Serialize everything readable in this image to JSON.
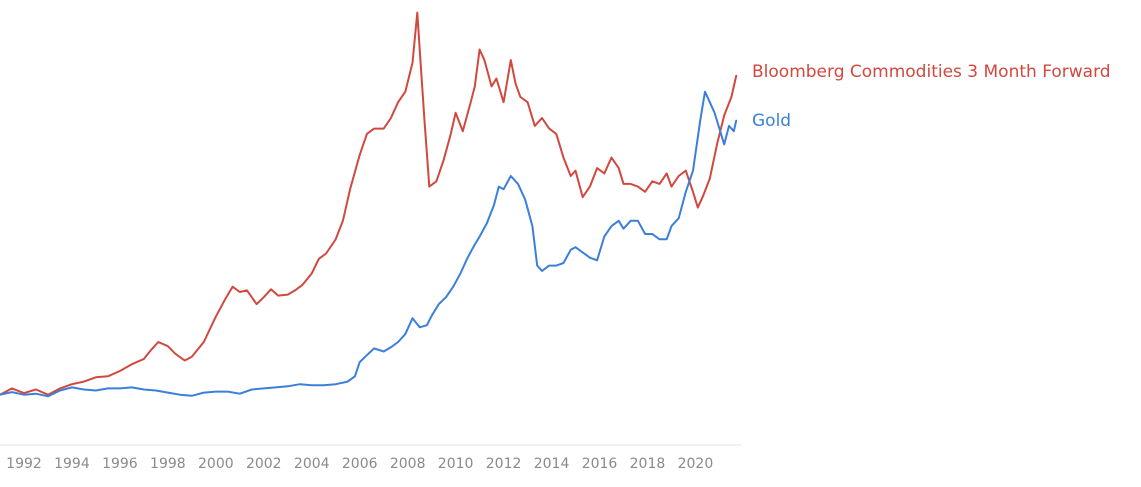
{
  "chart_data": {
    "type": "line",
    "title": "",
    "xlabel": "",
    "ylabel": "",
    "xlim": [
      1991,
      2021.9
    ],
    "ylim": [
      0.9,
      8.3
    ],
    "grid": false,
    "legend_placement": "right-end-of-lines",
    "x_ticks": [
      1992,
      1994,
      1996,
      1998,
      2000,
      2002,
      2004,
      2006,
      2008,
      2010,
      2012,
      2014,
      2016,
      2018,
      2020
    ],
    "x_tick_labels": [
      "1992",
      "1994",
      "1996",
      "1998",
      "2000",
      "2002",
      "2004",
      "2006",
      "2008",
      "2010",
      "2012",
      "2014",
      "2016",
      "2018",
      "2020"
    ],
    "series": [
      {
        "name": "Bloomberg Commodities 3 Month Forward",
        "color": "#d2483f",
        "x": [
          1991.0,
          1991.5,
          1992.0,
          1992.5,
          1993.0,
          1993.5,
          1994.0,
          1994.5,
          1995.0,
          1995.5,
          1996.0,
          1996.5,
          1997.0,
          1997.3,
          1997.6,
          1998.0,
          1998.3,
          1998.7,
          1999.0,
          1999.5,
          2000.0,
          2000.4,
          2000.7,
          2001.0,
          2001.3,
          2001.7,
          2002.0,
          2002.3,
          2002.6,
          2003.0,
          2003.3,
          2003.6,
          2004.0,
          2004.3,
          2004.6,
          2005.0,
          2005.3,
          2005.6,
          2006.0,
          2006.3,
          2006.6,
          2007.0,
          2007.3,
          2007.6,
          2007.9,
          2008.2,
          2008.4,
          2008.5,
          2008.7,
          2008.9,
          2009.2,
          2009.5,
          2009.8,
          2010.0,
          2010.3,
          2010.6,
          2010.8,
          2011.0,
          2011.2,
          2011.5,
          2011.7,
          2012.0,
          2012.3,
          2012.5,
          2012.7,
          2013.0,
          2013.3,
          2013.6,
          2013.9,
          2014.2,
          2014.5,
          2014.8,
          2015.0,
          2015.3,
          2015.6,
          2015.9,
          2016.2,
          2016.5,
          2016.8,
          2017.0,
          2017.3,
          2017.6,
          2017.9,
          2018.2,
          2018.5,
          2018.8,
          2019.0,
          2019.3,
          2019.6,
          2019.9,
          2020.1,
          2020.3,
          2020.6,
          2020.9,
          2021.2,
          2021.5,
          2021.7
        ],
        "values": [
          1.0,
          1.12,
          1.03,
          1.1,
          1.0,
          1.12,
          1.2,
          1.25,
          1.33,
          1.35,
          1.45,
          1.58,
          1.68,
          1.85,
          2.0,
          1.92,
          1.78,
          1.65,
          1.72,
          2.0,
          2.48,
          2.82,
          3.05,
          2.95,
          2.98,
          2.72,
          2.85,
          3.0,
          2.88,
          2.9,
          2.98,
          3.08,
          3.3,
          3.58,
          3.68,
          3.95,
          4.3,
          4.9,
          5.55,
          5.95,
          6.05,
          6.05,
          6.25,
          6.55,
          6.75,
          7.3,
          8.25,
          7.55,
          6.2,
          4.95,
          5.05,
          5.45,
          5.95,
          6.35,
          6.0,
          6.5,
          6.85,
          7.55,
          7.35,
          6.85,
          7.0,
          6.55,
          7.35,
          6.9,
          6.65,
          6.55,
          6.1,
          6.25,
          6.05,
          5.95,
          5.5,
          5.15,
          5.25,
          4.75,
          4.95,
          5.3,
          5.2,
          5.5,
          5.3,
          5.0,
          5.0,
          4.95,
          4.85,
          5.05,
          5.0,
          5.2,
          4.95,
          5.15,
          5.25,
          4.85,
          4.55,
          4.75,
          5.1,
          5.75,
          6.3,
          6.65,
          7.05
        ]
      },
      {
        "name": "Gold",
        "color": "#3c7fdb",
        "x": [
          1991.0,
          1991.5,
          1992.0,
          1992.5,
          1993.0,
          1993.5,
          1994.0,
          1994.5,
          1995.0,
          1995.5,
          1996.0,
          1996.5,
          1997.0,
          1997.5,
          1998.0,
          1998.5,
          1999.0,
          1999.5,
          2000.0,
          2000.5,
          2001.0,
          2001.5,
          2002.0,
          2002.5,
          2003.0,
          2003.5,
          2004.0,
          2004.5,
          2005.0,
          2005.5,
          2005.8,
          2006.0,
          2006.3,
          2006.6,
          2007.0,
          2007.3,
          2007.6,
          2007.9,
          2008.2,
          2008.5,
          2008.8,
          2009.0,
          2009.3,
          2009.6,
          2009.9,
          2010.2,
          2010.5,
          2010.8,
          2011.0,
          2011.3,
          2011.6,
          2011.8,
          2012.0,
          2012.3,
          2012.6,
          2012.9,
          2013.2,
          2013.4,
          2013.6,
          2013.9,
          2014.2,
          2014.5,
          2014.8,
          2015.0,
          2015.3,
          2015.6,
          2015.9,
          2016.2,
          2016.5,
          2016.8,
          2017.0,
          2017.3,
          2017.6,
          2017.9,
          2018.2,
          2018.5,
          2018.8,
          2019.0,
          2019.3,
          2019.6,
          2019.9,
          2020.2,
          2020.4,
          2020.6,
          2020.8,
          2021.0,
          2021.2,
          2021.4,
          2021.6,
          2021.7
        ],
        "values": [
          1.0,
          1.05,
          1.0,
          1.02,
          0.97,
          1.08,
          1.14,
          1.1,
          1.08,
          1.12,
          1.12,
          1.14,
          1.1,
          1.08,
          1.04,
          1.0,
          0.98,
          1.04,
          1.06,
          1.06,
          1.02,
          1.1,
          1.12,
          1.14,
          1.16,
          1.2,
          1.18,
          1.18,
          1.2,
          1.25,
          1.35,
          1.62,
          1.75,
          1.88,
          1.82,
          1.9,
          2.0,
          2.15,
          2.45,
          2.28,
          2.32,
          2.5,
          2.72,
          2.85,
          3.05,
          3.3,
          3.6,
          3.85,
          4.0,
          4.25,
          4.6,
          4.95,
          4.9,
          5.15,
          5.0,
          4.7,
          4.2,
          3.45,
          3.35,
          3.45,
          3.45,
          3.5,
          3.75,
          3.8,
          3.7,
          3.6,
          3.55,
          4.0,
          4.2,
          4.3,
          4.15,
          4.3,
          4.3,
          4.05,
          4.05,
          3.95,
          3.95,
          4.2,
          4.35,
          4.85,
          5.25,
          6.2,
          6.75,
          6.55,
          6.35,
          6.05,
          5.75,
          6.1,
          6.0,
          6.2
        ]
      }
    ]
  },
  "legend": {
    "commodities_label": "Bloomberg Commodities 3 Month Forward",
    "commodities_color": "#d2483f",
    "gold_label": "Gold",
    "gold_color": "#3c7fdb"
  }
}
